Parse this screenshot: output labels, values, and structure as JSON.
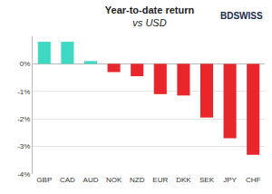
{
  "chart_data": {
    "type": "bar",
    "title": "Year-to-date return",
    "subtitle": "vs USD",
    "annotations": [
      "BDSWISS"
    ],
    "categories": [
      "GBP",
      "CAD",
      "AUD",
      "NOK",
      "NZD",
      "EUR",
      "DKK",
      "SEK",
      "JPY",
      "CHF"
    ],
    "values": [
      0.8,
      0.8,
      0.1,
      -0.3,
      -0.45,
      -1.1,
      -1.15,
      -1.95,
      -2.7,
      -3.3
    ],
    "colors": [
      "#3fd8c2",
      "#3fd8c2",
      "#3fd8c2",
      "#e8262b",
      "#e8262b",
      "#e8262b",
      "#e8262b",
      "#e8262b",
      "#e8262b",
      "#e8262b"
    ],
    "ylim": [
      -4,
      1
    ],
    "yticks": [
      {
        "value": -4,
        "label": "-4%"
      },
      {
        "value": -3,
        "label": "-3%"
      },
      {
        "value": -2,
        "label": "-2%"
      },
      {
        "value": -1,
        "label": "-1%"
      },
      {
        "value": 0,
        "label": "0%"
      }
    ],
    "grid": true
  }
}
